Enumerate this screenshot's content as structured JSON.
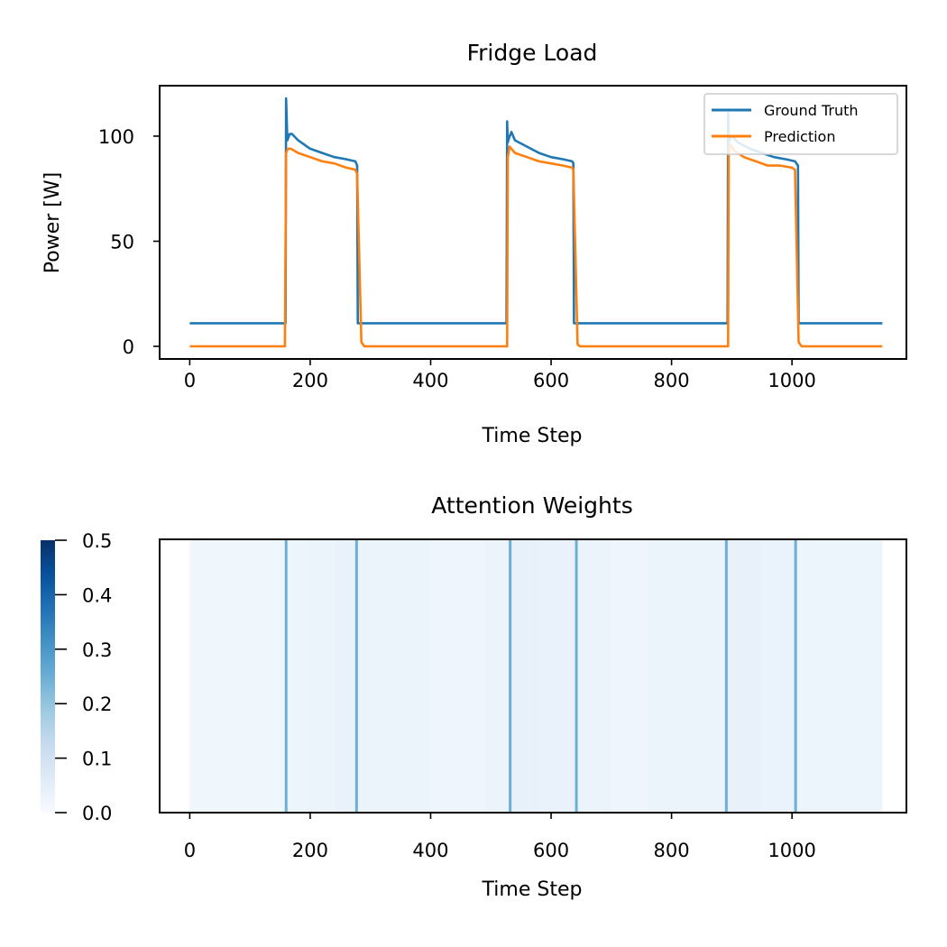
{
  "chart_data": [
    {
      "type": "line",
      "title": "Fridge Load",
      "xlabel": "Time Step",
      "ylabel": "Power [W]",
      "xlim": [
        -50,
        1190
      ],
      "ylim": [
        -6,
        124
      ],
      "xticks": [
        0,
        200,
        400,
        600,
        800,
        1000
      ],
      "yticks": [
        0,
        50,
        100
      ],
      "grid": false,
      "legend_position": "top-right",
      "series": [
        {
          "name": "Ground Truth",
          "color": "#1f77b4",
          "x": [
            0,
            158,
            159,
            160,
            162,
            166,
            170,
            180,
            200,
            220,
            240,
            260,
            275,
            278,
            279,
            280,
            400,
            526,
            527,
            528,
            530,
            534,
            540,
            560,
            580,
            600,
            620,
            635,
            637,
            638,
            639,
            760,
            893,
            894,
            895,
            897,
            901,
            910,
            930,
            950,
            970,
            990,
            1005,
            1010,
            1011,
            1012,
            1150
          ],
          "values": [
            11,
            11,
            11,
            118,
            98,
            101,
            101,
            98,
            94,
            92,
            90,
            89,
            88,
            86,
            11,
            11,
            11,
            11,
            107,
            97,
            99,
            102,
            98,
            95,
            92,
            90,
            89,
            88,
            87,
            11,
            11,
            11,
            11,
            111,
            97,
            99,
            100,
            97,
            94,
            92,
            90,
            89,
            88,
            86,
            11,
            11,
            11
          ]
        },
        {
          "name": "Prediction",
          "color": "#ff7f0e",
          "x": [
            0,
            158,
            159,
            160,
            163,
            168,
            180,
            200,
            220,
            240,
            260,
            275,
            278,
            285,
            290,
            400,
            526,
            527,
            528,
            531,
            540,
            560,
            580,
            600,
            620,
            635,
            637,
            644,
            648,
            760,
            893,
            894,
            895,
            898,
            905,
            920,
            940,
            960,
            980,
            1000,
            1005,
            1011,
            1016,
            1150
          ],
          "values": [
            0,
            0,
            48,
            92,
            94,
            94,
            92,
            90,
            88,
            87,
            85,
            84,
            82,
            2,
            0,
            0,
            0,
            0,
            90,
            95,
            92,
            90,
            88,
            87,
            86,
            85,
            84,
            1,
            0,
            0,
            0,
            0,
            92,
            96,
            93,
            90,
            88,
            86,
            86,
            85,
            84,
            2,
            0,
            0
          ]
        }
      ]
    },
    {
      "type": "heatmap",
      "title": "Attention Weights",
      "xlabel": "Time Step",
      "xlim": [
        -50,
        1190
      ],
      "xticks": [
        0,
        200,
        400,
        600,
        800,
        1000
      ],
      "colormap": "Blues",
      "colorbar_range": [
        0.0,
        0.5
      ],
      "colorbar_ticks": [
        0.0,
        0.1,
        0.2,
        0.3,
        0.4,
        0.5
      ],
      "colorbar_tick_labels": [
        "0.0",
        "0.1",
        "0.2",
        "0.3",
        "0.4",
        "0.5"
      ],
      "background_segments": [
        {
          "start": 0,
          "end": 158,
          "value": 0.02
        },
        {
          "start": 158,
          "end": 195,
          "value": 0.025
        },
        {
          "start": 195,
          "end": 240,
          "value": 0.03
        },
        {
          "start": 240,
          "end": 278,
          "value": 0.035
        },
        {
          "start": 278,
          "end": 400,
          "value": 0.028
        },
        {
          "start": 400,
          "end": 490,
          "value": 0.022
        },
        {
          "start": 490,
          "end": 527,
          "value": 0.03
        },
        {
          "start": 527,
          "end": 580,
          "value": 0.04
        },
        {
          "start": 580,
          "end": 638,
          "value": 0.035
        },
        {
          "start": 638,
          "end": 700,
          "value": 0.03
        },
        {
          "start": 700,
          "end": 760,
          "value": 0.022
        },
        {
          "start": 760,
          "end": 893,
          "value": 0.03
        },
        {
          "start": 893,
          "end": 950,
          "value": 0.038
        },
        {
          "start": 950,
          "end": 1011,
          "value": 0.032
        },
        {
          "start": 1011,
          "end": 1150,
          "value": 0.025
        }
      ],
      "peaks": [
        {
          "x": 160,
          "value": 0.25
        },
        {
          "x": 277,
          "value": 0.25
        },
        {
          "x": 532,
          "value": 0.25
        },
        {
          "x": 642,
          "value": 0.25
        },
        {
          "x": 891,
          "value": 0.25
        },
        {
          "x": 1006,
          "value": 0.25
        }
      ]
    }
  ]
}
